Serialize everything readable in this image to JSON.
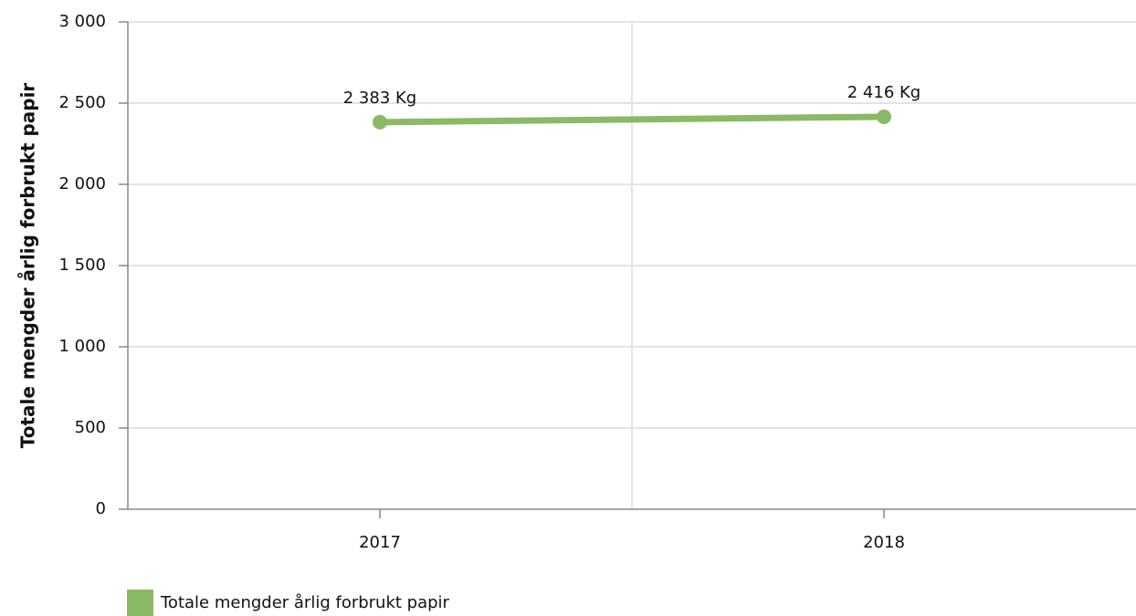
{
  "chart_data": {
    "type": "line",
    "ylabel": "Totale mengder årlig forbrukt papir",
    "categories": [
      "2017",
      "2018"
    ],
    "series": [
      {
        "name": "Totale mengder årlig forbrukt papir",
        "color": "#8aba65",
        "values": [
          2383,
          2416
        ],
        "value_labels": [
          "2 383 Kg",
          "2 416 Kg"
        ]
      }
    ],
    "ylim": [
      0,
      3000
    ],
    "yticks": [
      0,
      500,
      {
        "value": 1000,
        "label": "1 000"
      },
      {
        "value": 1500,
        "label": "1 500"
      },
      {
        "value": 2000,
        "label": "2 000"
      },
      {
        "value": 2500,
        "label": "2 500"
      },
      {
        "value": 3000,
        "label": "3 000"
      }
    ],
    "grid": true,
    "legend": "bottom-left"
  }
}
